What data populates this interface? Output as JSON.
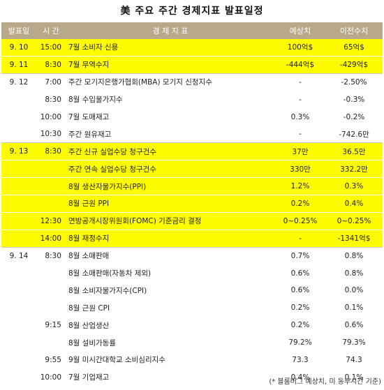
{
  "title": "美 주요 주간 경제지표 발표일정",
  "headers": {
    "date": "발표일",
    "time": "시 간",
    "indicator": "경 제 지 표",
    "forecast": "예상치",
    "previous": "이전수치"
  },
  "rows": [
    {
      "date": "9. 10",
      "time": "15:00",
      "indicator": "7월 소비자 신용",
      "forecast": "100억$",
      "previous": "65억$",
      "highlight": true
    },
    {
      "date": "9. 11",
      "time": "8:30",
      "indicator": "7월 무역수지",
      "forecast": "-444억$",
      "previous": "-429억$",
      "highlight": true
    },
    {
      "date": "9. 12",
      "time": "7:00",
      "indicator": "주간 모기지은행가협회(MBA) 모기지 신청지수",
      "forecast": "-",
      "previous": "-2.50%",
      "highlight": false
    },
    {
      "date": "",
      "time": "8:30",
      "indicator": "8월 수입물가지수",
      "forecast": "-",
      "previous": "-0.3%",
      "highlight": false
    },
    {
      "date": "",
      "time": "10:00",
      "indicator": "7월 도매재고",
      "forecast": "0.3%",
      "previous": "-0.2%",
      "highlight": false
    },
    {
      "date": "",
      "time": "10:30",
      "indicator": "주간 원유재고",
      "forecast": "-",
      "previous": "-742.6만",
      "highlight": false
    },
    {
      "date": "9. 13",
      "time": "8:30",
      "indicator": "주간 신규 실업수당 청구건수",
      "forecast": "37만",
      "previous": "36.5만",
      "highlight": true
    },
    {
      "date": "",
      "time": "",
      "indicator": "주간 연속 실업수당 청구건수",
      "forecast": "330만",
      "previous": "332.2만",
      "highlight": true
    },
    {
      "date": "",
      "time": "",
      "indicator": "8월 생산자물가지수(PPI)",
      "forecast": "1.2%",
      "previous": "0.3%",
      "highlight": true
    },
    {
      "date": "",
      "time": "",
      "indicator": "8월 근원 PPI",
      "forecast": "0.2%",
      "previous": "0.4%",
      "highlight": true
    },
    {
      "date": "",
      "time": "12:30",
      "indicator": "연방공개시장위원회(FOMC) 기준금리 결정",
      "forecast": "0~0.25%",
      "previous": "0~0.25%",
      "highlight": true
    },
    {
      "date": "",
      "time": "14:00",
      "indicator": "8월 재정수지",
      "forecast": "-",
      "previous": "-1341억$",
      "highlight": true
    },
    {
      "date": "9. 14",
      "time": "8:30",
      "indicator": "8월 소매판매",
      "forecast": "0.7%",
      "previous": "0.8%",
      "highlight": false
    },
    {
      "date": "",
      "time": "",
      "indicator": "8월 소매판매(자동차 제외)",
      "forecast": "0.6%",
      "previous": "0.8%",
      "highlight": false
    },
    {
      "date": "",
      "time": "",
      "indicator": "8월 소비자물가지수(CPI)",
      "forecast": "0.6%",
      "previous": "0.0%",
      "highlight": false
    },
    {
      "date": "",
      "time": "",
      "indicator": "8월 근원 CPI",
      "forecast": "0.2%",
      "previous": "0.1%",
      "highlight": false
    },
    {
      "date": "",
      "time": "9:15",
      "indicator": "8월 산업생산",
      "forecast": "0.2%",
      "previous": "0.6%",
      "highlight": false
    },
    {
      "date": "",
      "time": "",
      "indicator": "8월 설비가동률",
      "forecast": "79.2%",
      "previous": "79.3%",
      "highlight": false
    },
    {
      "date": "",
      "time": "9:55",
      "indicator": "9월 미시간대학교 소비심리지수",
      "forecast": "73.3",
      "previous": "74.3",
      "highlight": false
    },
    {
      "date": "",
      "time": "10:00",
      "indicator": "7월 기업재고",
      "forecast": "0.4%",
      "previous": "0.1%",
      "highlight": false
    }
  ],
  "footer": "(* 블룸버그 예상치, 미 동부시간 기준)",
  "colors": {
    "header_bg": "#b7a98a",
    "highlight": "#fffb00"
  }
}
